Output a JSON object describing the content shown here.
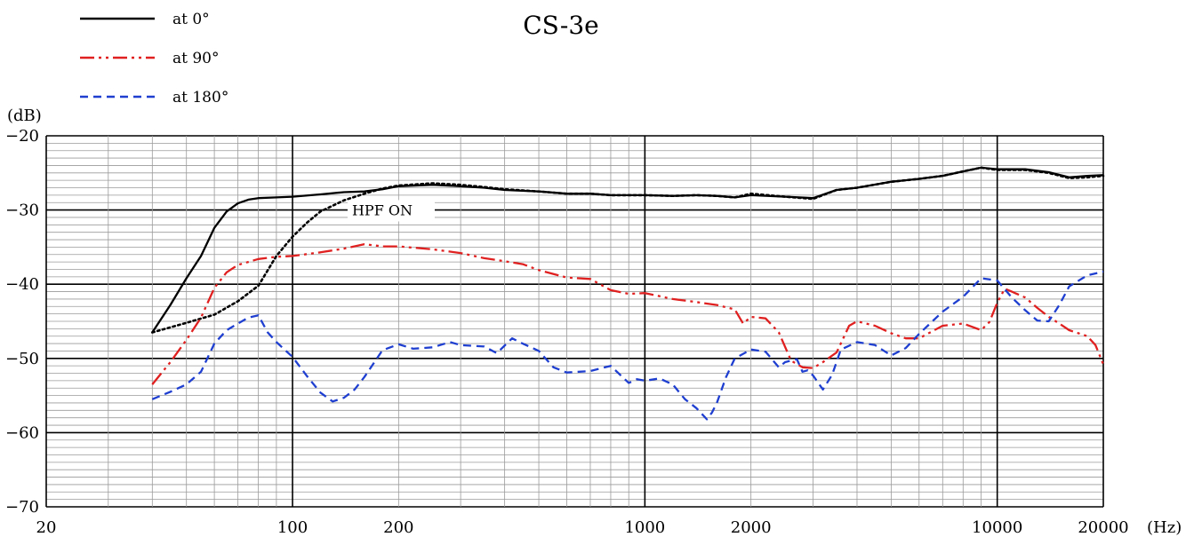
{
  "chart_data": {
    "type": "line",
    "title": "CS-3e",
    "ylabel": "(dB)",
    "xlabel": "(Hz)",
    "xscale": "log",
    "xlim": [
      20,
      20000
    ],
    "ylim": [
      -70,
      -20
    ],
    "x_tick_labels": [
      {
        "value": 20,
        "label": "20"
      },
      {
        "value": 100,
        "label": "100"
      },
      {
        "value": 200,
        "label": "200"
      },
      {
        "value": 1000,
        "label": "1000"
      },
      {
        "value": 2000,
        "label": "2000"
      },
      {
        "value": 10000,
        "label": "10000"
      },
      {
        "value": 20000,
        "label": "20000"
      }
    ],
    "y_tick_labels": [
      {
        "value": -20,
        "label": "−20"
      },
      {
        "value": -30,
        "label": "−30"
      },
      {
        "value": -40,
        "label": "−40"
      },
      {
        "value": -50,
        "label": "−50"
      },
      {
        "value": -60,
        "label": "−60"
      },
      {
        "value": -70,
        "label": "−70"
      }
    ],
    "grid": true,
    "legend_position": "top-left",
    "annotations": [
      {
        "text": "HPF ON",
        "x": 145,
        "y": -30.7
      }
    ],
    "series": [
      {
        "name": "at 0°",
        "color": "#000000",
        "dash": "solid",
        "points": [
          [
            40,
            -46.5
          ],
          [
            45,
            -42.8
          ],
          [
            50,
            -39.2
          ],
          [
            55,
            -36.2
          ],
          [
            60,
            -32.4
          ],
          [
            65,
            -30.2
          ],
          [
            70,
            -29.1
          ],
          [
            75,
            -28.6
          ],
          [
            80,
            -28.4
          ],
          [
            90,
            -28.3
          ],
          [
            100,
            -28.2
          ],
          [
            120,
            -27.9
          ],
          [
            140,
            -27.6
          ],
          [
            160,
            -27.5
          ],
          [
            180,
            -27.2
          ],
          [
            200,
            -26.8
          ],
          [
            250,
            -26.6
          ],
          [
            300,
            -26.8
          ],
          [
            350,
            -27.0
          ],
          [
            400,
            -27.3
          ],
          [
            500,
            -27.5
          ],
          [
            600,
            -27.8
          ],
          [
            700,
            -27.8
          ],
          [
            800,
            -28.0
          ],
          [
            900,
            -28.0
          ],
          [
            1000,
            -28.0
          ],
          [
            1200,
            -28.1
          ],
          [
            1400,
            -28.0
          ],
          [
            1600,
            -28.1
          ],
          [
            1800,
            -28.3
          ],
          [
            2000,
            -28.0
          ],
          [
            2500,
            -28.2
          ],
          [
            3000,
            -28.4
          ],
          [
            3500,
            -27.3
          ],
          [
            4000,
            -27.0
          ],
          [
            5000,
            -26.2
          ],
          [
            6000,
            -25.8
          ],
          [
            7000,
            -25.4
          ],
          [
            8000,
            -24.8
          ],
          [
            9000,
            -24.3
          ],
          [
            10000,
            -24.5
          ],
          [
            12000,
            -24.5
          ],
          [
            14000,
            -24.9
          ],
          [
            16000,
            -25.6
          ],
          [
            18000,
            -25.4
          ],
          [
            20000,
            -25.3
          ]
        ]
      },
      {
        "name": "at 0° HPF ON",
        "color": "#000000",
        "dash": "dotted",
        "points": [
          [
            40,
            -46.5
          ],
          [
            50,
            -45.2
          ],
          [
            60,
            -44.1
          ],
          [
            70,
            -42.3
          ],
          [
            80,
            -40.2
          ],
          [
            90,
            -36.2
          ],
          [
            100,
            -33.6
          ],
          [
            110,
            -31.7
          ],
          [
            120,
            -30.2
          ],
          [
            140,
            -28.7
          ],
          [
            160,
            -27.8
          ],
          [
            180,
            -27.1
          ],
          [
            200,
            -26.7
          ],
          [
            250,
            -26.4
          ],
          [
            300,
            -26.6
          ],
          [
            350,
            -26.9
          ],
          [
            400,
            -27.2
          ],
          [
            500,
            -27.5
          ],
          [
            600,
            -27.8
          ],
          [
            700,
            -27.8
          ],
          [
            800,
            -28.0
          ],
          [
            1000,
            -28.0
          ],
          [
            1200,
            -28.1
          ],
          [
            1400,
            -28.0
          ],
          [
            1600,
            -28.1
          ],
          [
            1800,
            -28.3
          ],
          [
            2000,
            -27.8
          ],
          [
            2500,
            -28.2
          ],
          [
            3000,
            -28.5
          ],
          [
            3500,
            -27.3
          ],
          [
            4000,
            -27.0
          ],
          [
            5000,
            -26.2
          ],
          [
            6000,
            -25.8
          ],
          [
            7000,
            -25.4
          ],
          [
            8000,
            -24.8
          ],
          [
            9000,
            -24.3
          ],
          [
            10000,
            -24.6
          ],
          [
            12000,
            -24.6
          ],
          [
            14000,
            -25.0
          ],
          [
            16000,
            -25.7
          ],
          [
            18000,
            -25.6
          ],
          [
            20000,
            -25.4
          ]
        ]
      },
      {
        "name": "at 90°",
        "color": "#e02020",
        "dash": "dashdotdot",
        "points": [
          [
            40,
            -53.5
          ],
          [
            45,
            -50.5
          ],
          [
            50,
            -47.5
          ],
          [
            55,
            -44.5
          ],
          [
            60,
            -40.5
          ],
          [
            65,
            -38.4
          ],
          [
            70,
            -37.4
          ],
          [
            80,
            -36.6
          ],
          [
            90,
            -36.3
          ],
          [
            100,
            -36.2
          ],
          [
            120,
            -35.7
          ],
          [
            140,
            -35.2
          ],
          [
            160,
            -34.6
          ],
          [
            180,
            -34.9
          ],
          [
            200,
            -34.9
          ],
          [
            250,
            -35.3
          ],
          [
            300,
            -35.8
          ],
          [
            350,
            -36.5
          ],
          [
            400,
            -36.9
          ],
          [
            450,
            -37.3
          ],
          [
            500,
            -38.1
          ],
          [
            600,
            -39.1
          ],
          [
            700,
            -39.3
          ],
          [
            800,
            -40.8
          ],
          [
            900,
            -41.3
          ],
          [
            1000,
            -41.2
          ],
          [
            1200,
            -42.0
          ],
          [
            1400,
            -42.4
          ],
          [
            1600,
            -42.8
          ],
          [
            1800,
            -43.4
          ],
          [
            1900,
            -45.3
          ],
          [
            2000,
            -44.4
          ],
          [
            2200,
            -44.6
          ],
          [
            2400,
            -46.5
          ],
          [
            2600,
            -50.3
          ],
          [
            2800,
            -51.2
          ],
          [
            3000,
            -51.3
          ],
          [
            3200,
            -50.5
          ],
          [
            3500,
            -49.2
          ],
          [
            3800,
            -45.6
          ],
          [
            4000,
            -45.0
          ],
          [
            4500,
            -45.6
          ],
          [
            5000,
            -46.6
          ],
          [
            5500,
            -47.3
          ],
          [
            6000,
            -47.3
          ],
          [
            7000,
            -45.6
          ],
          [
            8000,
            -45.3
          ],
          [
            9000,
            -46.2
          ],
          [
            9500,
            -45.1
          ],
          [
            10000,
            -42.5
          ],
          [
            10500,
            -40.6
          ],
          [
            11000,
            -41.0
          ],
          [
            12000,
            -41.8
          ],
          [
            13000,
            -43.2
          ],
          [
            14000,
            -44.4
          ],
          [
            15000,
            -45.3
          ],
          [
            16000,
            -46.2
          ],
          [
            18000,
            -47.0
          ],
          [
            19000,
            -48.2
          ],
          [
            20000,
            -50.8
          ]
        ]
      },
      {
        "name": "at 180°",
        "color": "#1f3fd0",
        "dash": "dashed",
        "points": [
          [
            40,
            -55.5
          ],
          [
            45,
            -54.5
          ],
          [
            50,
            -53.5
          ],
          [
            55,
            -51.8
          ],
          [
            60,
            -48.0
          ],
          [
            65,
            -46.2
          ],
          [
            70,
            -45.3
          ],
          [
            75,
            -44.5
          ],
          [
            80,
            -44.2
          ],
          [
            85,
            -46.5
          ],
          [
            90,
            -47.8
          ],
          [
            100,
            -49.8
          ],
          [
            110,
            -52.4
          ],
          [
            120,
            -54.6
          ],
          [
            130,
            -55.8
          ],
          [
            140,
            -55.3
          ],
          [
            150,
            -54.2
          ],
          [
            160,
            -52.5
          ],
          [
            180,
            -48.9
          ],
          [
            200,
            -48.1
          ],
          [
            220,
            -48.7
          ],
          [
            250,
            -48.5
          ],
          [
            280,
            -47.8
          ],
          [
            300,
            -48.2
          ],
          [
            350,
            -48.4
          ],
          [
            380,
            -49.3
          ],
          [
            420,
            -47.3
          ],
          [
            450,
            -48.0
          ],
          [
            500,
            -49.0
          ],
          [
            550,
            -51.2
          ],
          [
            600,
            -51.9
          ],
          [
            700,
            -51.7
          ],
          [
            800,
            -51.0
          ],
          [
            900,
            -53.3
          ],
          [
            950,
            -52.8
          ],
          [
            1000,
            -53.0
          ],
          [
            1100,
            -52.7
          ],
          [
            1200,
            -53.5
          ],
          [
            1300,
            -55.5
          ],
          [
            1400,
            -56.7
          ],
          [
            1500,
            -58.2
          ],
          [
            1550,
            -57.3
          ],
          [
            1600,
            -56.0
          ],
          [
            1700,
            -52.5
          ],
          [
            1800,
            -50.0
          ],
          [
            2000,
            -48.8
          ],
          [
            2200,
            -49.1
          ],
          [
            2400,
            -51.2
          ],
          [
            2500,
            -50.5
          ],
          [
            2700,
            -50.1
          ],
          [
            2800,
            -51.8
          ],
          [
            2900,
            -51.6
          ],
          [
            3000,
            -52.3
          ],
          [
            3200,
            -54.2
          ],
          [
            3400,
            -52.2
          ],
          [
            3600,
            -48.8
          ],
          [
            4000,
            -47.8
          ],
          [
            4500,
            -48.2
          ],
          [
            5000,
            -49.6
          ],
          [
            5500,
            -48.6
          ],
          [
            6000,
            -46.7
          ],
          [
            7000,
            -43.7
          ],
          [
            8000,
            -41.7
          ],
          [
            9000,
            -39.2
          ],
          [
            10000,
            -39.5
          ],
          [
            11000,
            -41.8
          ],
          [
            12000,
            -43.5
          ],
          [
            13000,
            -44.9
          ],
          [
            14000,
            -45.0
          ],
          [
            15000,
            -42.8
          ],
          [
            16000,
            -40.3
          ],
          [
            18000,
            -38.8
          ],
          [
            20000,
            -38.3
          ]
        ]
      }
    ],
    "legend": [
      {
        "label": "at 0°",
        "color": "#000000",
        "dash": "solid"
      },
      {
        "label": "at 90°",
        "color": "#e02020",
        "dash": "dashdotdot"
      },
      {
        "label": "at 180°",
        "color": "#1f3fd0",
        "dash": "dashed"
      }
    ]
  }
}
